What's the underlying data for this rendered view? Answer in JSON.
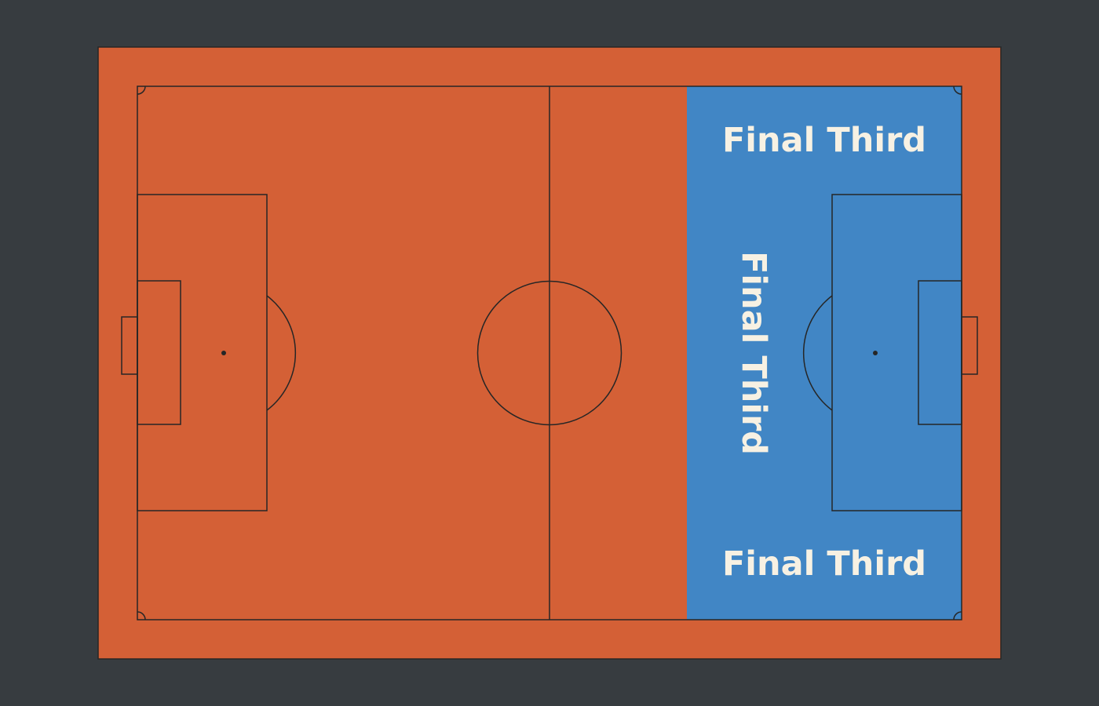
{
  "colors": {
    "background": "#373c40",
    "pitch": "#d46036",
    "final_third": "#4186c5",
    "lines": "#262626",
    "label": "#f7f1e3"
  },
  "zone": {
    "labels": {
      "top": "Final Third",
      "middle": "Final Third",
      "bottom": "Final Third"
    }
  }
}
